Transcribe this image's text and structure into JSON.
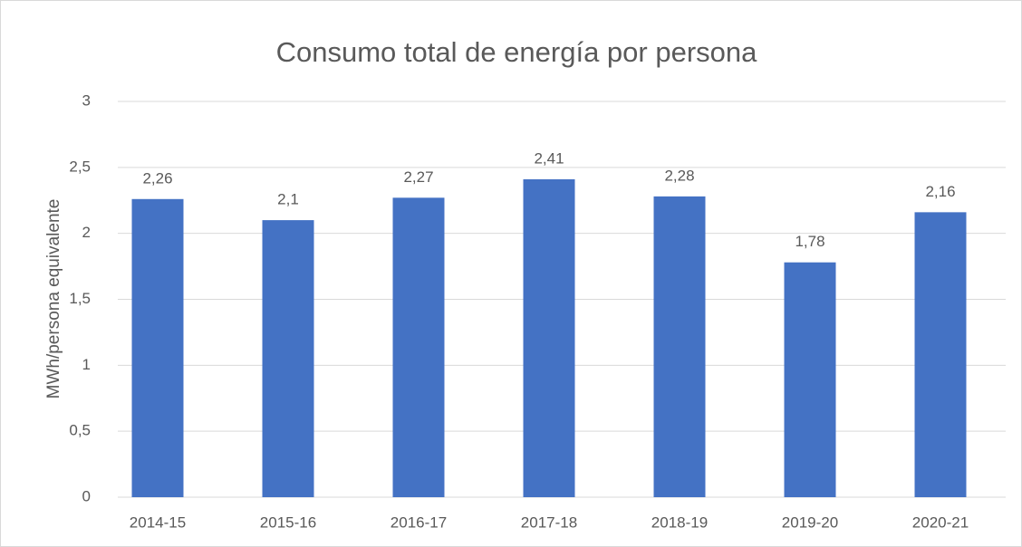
{
  "chart_data": {
    "type": "bar",
    "title": "Consumo total de energía por persona",
    "y_label": "MWh/persona equivalente",
    "categories": [
      "2014-15",
      "2015-16",
      "2016-17",
      "2017-18",
      "2018-19",
      "2019-20",
      "2020-21"
    ],
    "values": [
      2.26,
      2.1,
      2.27,
      2.41,
      2.28,
      1.78,
      2.16
    ],
    "value_labels": [
      "2,26",
      "2,1",
      "2,27",
      "2,41",
      "2,28",
      "1,78",
      "2,16"
    ],
    "color": "#4472c4",
    "ylim": [
      0,
      3
    ],
    "yticks": [
      0,
      {
        "value": 0.5,
        "label": "0,5"
      },
      1,
      {
        "value": 1.5,
        "label": "1,5"
      },
      2,
      {
        "value": 2.5,
        "label": "2,5"
      },
      3
    ],
    "grid": true
  }
}
